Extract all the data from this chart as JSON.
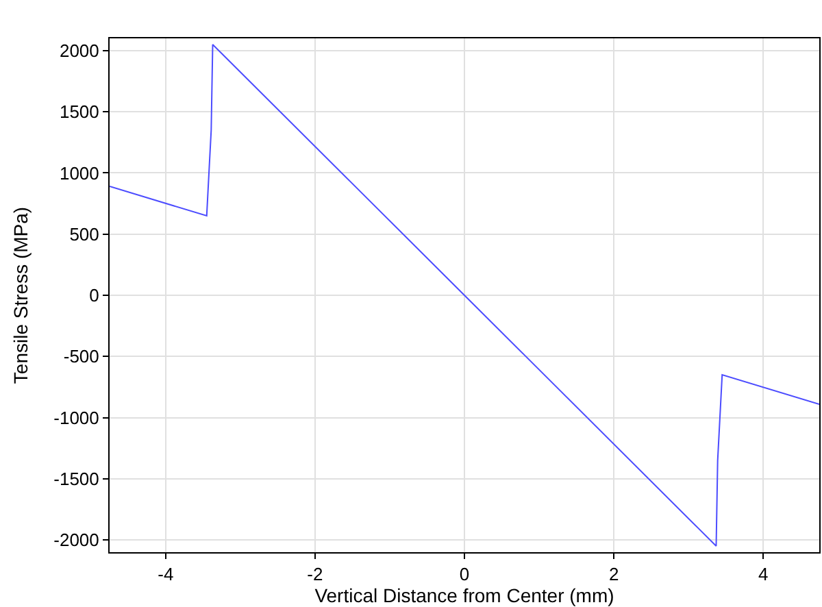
{
  "chart_data": {
    "type": "line",
    "xlabel": "Vertical Distance from Center (mm)",
    "ylabel": "Tensile Stress (MPa)",
    "x": [
      -4.75,
      -3.45,
      -3.39,
      -3.37,
      0,
      3.37,
      3.39,
      3.45,
      4.75
    ],
    "series": [
      {
        "color": "#4c4cff",
        "values": [
          890,
          650,
          1350,
          2050,
          0,
          -2050,
          -1350,
          -650,
          -890
        ]
      }
    ],
    "xlim": [
      -4.75,
      4.75
    ],
    "xticks": [
      -4,
      -2,
      0,
      2,
      4
    ],
    "ylim": [
      -2100,
      2100
    ],
    "yticks": [
      -2000,
      -1500,
      -1000,
      -500,
      0,
      500,
      1000,
      1500,
      2000
    ],
    "grid": true,
    "marker": "none",
    "line_style": "solid"
  }
}
